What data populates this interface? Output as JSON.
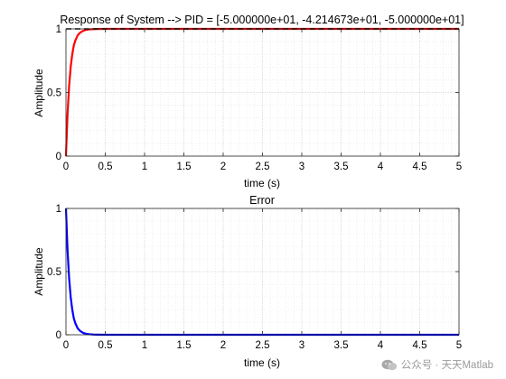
{
  "chart_data": [
    {
      "type": "line",
      "title": "Response of System --> PID = [-5.000000e+01, -4.214673e+01, -5.000000e+01]",
      "xlabel": "time (s)",
      "ylabel": "Amplitude",
      "xlim": [
        0,
        5
      ],
      "ylim": [
        0,
        1
      ],
      "xticks": [
        "0",
        "0.5",
        "1",
        "1.5",
        "2",
        "2.5",
        "3",
        "3.5",
        "4",
        "4.5",
        "5"
      ],
      "yticks": [
        "0",
        "0.5",
        "1"
      ],
      "grid": "minor",
      "series": [
        {
          "name": "",
          "style": "solid",
          "color": "#ff0000",
          "x": [
            0,
            0.02,
            0.04,
            0.06,
            0.08,
            0.1,
            0.12,
            0.15,
            0.18,
            0.22,
            0.26,
            0.3,
            0.35,
            0.4,
            0.5,
            0.6,
            0.8,
            1.0,
            1.5,
            2.0,
            3.0,
            4.0,
            5.0
          ],
          "y": [
            0,
            0.33,
            0.55,
            0.7,
            0.8,
            0.87,
            0.91,
            0.95,
            0.97,
            0.985,
            0.993,
            0.996,
            0.998,
            0.999,
            1.0,
            1.0,
            1.0,
            1.0,
            1.0,
            1.0,
            1.0,
            1.0,
            1.0
          ]
        },
        {
          "name": "",
          "style": "dashed",
          "color": "#000000",
          "x": [
            0,
            5
          ],
          "y": [
            1,
            1
          ]
        }
      ]
    },
    {
      "type": "line",
      "title": "Error",
      "xlabel": "time (s)",
      "ylabel": "Amplitude",
      "xlim": [
        0,
        5
      ],
      "ylim": [
        0,
        1
      ],
      "xticks": [
        "0",
        "0.5",
        "1",
        "1.5",
        "2",
        "2.5",
        "3",
        "3.5",
        "4",
        "4.5",
        "5"
      ],
      "yticks": [
        "0",
        "0.5",
        "1"
      ],
      "grid": "minor",
      "series": [
        {
          "name": "",
          "style": "solid",
          "color": "#0000ff",
          "x": [
            0,
            0.02,
            0.04,
            0.06,
            0.08,
            0.1,
            0.12,
            0.15,
            0.18,
            0.22,
            0.26,
            0.3,
            0.35,
            0.4,
            0.5,
            0.6,
            0.8,
            1.0,
            1.5,
            2.0,
            3.0,
            4.0,
            5.0
          ],
          "y": [
            1.0,
            0.67,
            0.45,
            0.3,
            0.2,
            0.13,
            0.09,
            0.05,
            0.03,
            0.015,
            0.007,
            0.004,
            0.002,
            0.001,
            0,
            0,
            0,
            0,
            0,
            0,
            0,
            0,
            0
          ]
        }
      ]
    }
  ],
  "watermark": {
    "icon": "wechat-icon",
    "text": "公众号 · 天天Matlab"
  }
}
